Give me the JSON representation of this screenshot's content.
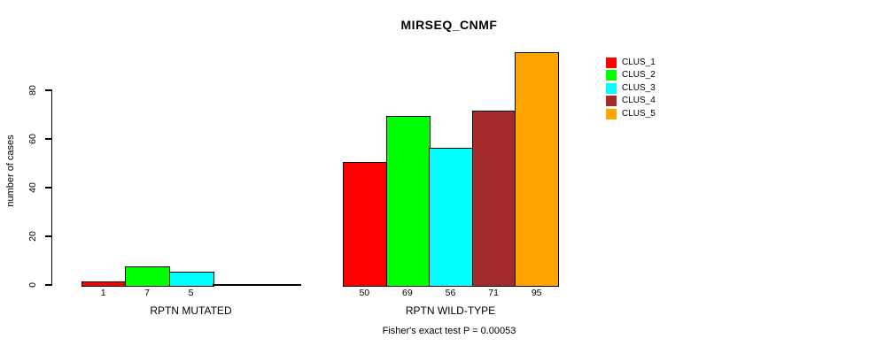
{
  "title": "MIRSEQ_CNMF",
  "legend": {
    "items": [
      {
        "label": "CLUS_1",
        "color": "#FF0000"
      },
      {
        "label": "CLUS_2",
        "color": "#00FF00"
      },
      {
        "label": "CLUS_3",
        "color": "#00FFFF"
      },
      {
        "label": "CLUS_4",
        "color": "#A52A2A"
      },
      {
        "label": "CLUS_5",
        "color": "#FFA500"
      }
    ]
  },
  "chart_data": {
    "type": "bar",
    "title": "MIRSEQ_CNMF",
    "xlabel": "",
    "ylabel": "number of cases",
    "ylim": [
      0,
      95
    ],
    "yticks": [
      0,
      20,
      40,
      60,
      80
    ],
    "grid": false,
    "legend_position": "right",
    "series_names": [
      "CLUS_1",
      "CLUS_2",
      "CLUS_3",
      "CLUS_4",
      "CLUS_5"
    ],
    "series_colors": [
      "#FF0000",
      "#00FF00",
      "#00FFFF",
      "#A52A2A",
      "#FFA500"
    ],
    "groups": [
      {
        "label": "RPTN MUTATED",
        "values": [
          1,
          7,
          5,
          0,
          0
        ],
        "bar_labels": [
          "1",
          "7",
          "5",
          "",
          ""
        ]
      },
      {
        "label": "RPTN WILD-TYPE",
        "values": [
          50,
          69,
          56,
          71,
          95
        ],
        "bar_labels": [
          "50",
          "69",
          "56",
          "71",
          "95"
        ]
      }
    ],
    "annotation": "Fisher's exact test P = 0.00053"
  }
}
